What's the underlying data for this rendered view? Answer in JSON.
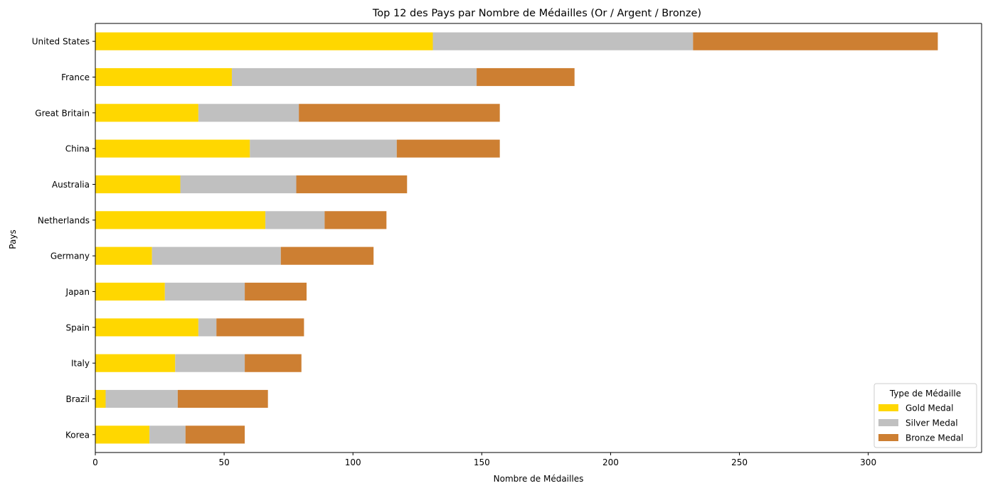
{
  "chart_data": {
    "type": "bar",
    "orientation": "horizontal",
    "stacked": true,
    "title": "Top 12 des Pays par Nombre de Médailles (Or / Argent / Bronze)",
    "xlabel": "Nombre de Médailles",
    "ylabel": "Pays",
    "xlim": [
      0,
      344
    ],
    "xticks": [
      0,
      50,
      100,
      150,
      200,
      250,
      300
    ],
    "grid": false,
    "categories": [
      "United States",
      "France",
      "Great Britain",
      "China",
      "Australia",
      "Netherlands",
      "Germany",
      "Japan",
      "Spain",
      "Italy",
      "Brazil",
      "Korea"
    ],
    "series": [
      {
        "name": "Gold Medal",
        "color": "#FFD700",
        "values": [
          131,
          53,
          40,
          60,
          33,
          66,
          22,
          27,
          40,
          31,
          4,
          21
        ]
      },
      {
        "name": "Silver Medal",
        "color": "#C0C0C0",
        "values": [
          101,
          95,
          39,
          57,
          45,
          23,
          50,
          31,
          7,
          27,
          28,
          14
        ]
      },
      {
        "name": "Bronze Medal",
        "color": "#CD7F32",
        "values": [
          95,
          38,
          78,
          40,
          43,
          24,
          36,
          24,
          34,
          22,
          35,
          23
        ]
      }
    ],
    "legend": {
      "title": "Type de Médaille",
      "position": "lower-right"
    }
  }
}
